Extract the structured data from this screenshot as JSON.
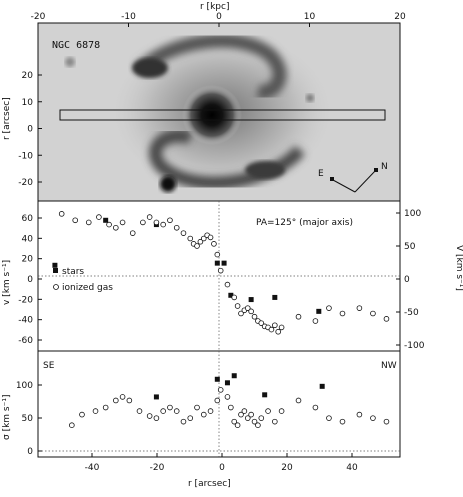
{
  "figure": {
    "galaxy_name": "NGC 6878",
    "top_axis_label": "r [kpc]",
    "top_ticks": [
      "-20",
      "-10",
      "0",
      "10",
      "20"
    ],
    "compass": {
      "east": "E",
      "north": "N"
    },
    "image_ylabel": "r [arcsec]",
    "image_yticks": [
      "20",
      "10",
      "0",
      "-10",
      "-20"
    ],
    "pa_label": "PA=125° (major axis)",
    "vel_ylabel": "v [km s⁻¹]",
    "vel_yticks": [
      "60",
      "40",
      "20",
      "0",
      "-20",
      "-40",
      "-60"
    ],
    "vel_right_label": "V [km s⁻¹]",
    "vel_right_ticks": [
      "100",
      "50",
      "0",
      "-50",
      "-100"
    ],
    "legend": {
      "stars": "stars",
      "gas": "ionized gas"
    },
    "sig_ylabel": "σ [km s⁻¹]",
    "sig_yticks": [
      "100",
      "50",
      "0"
    ],
    "se_label": "SE",
    "nw_label": "NW",
    "bottom_xlabel": "r [arcsec]",
    "bottom_ticks": [
      "-40",
      "-20",
      "0",
      "20",
      "40"
    ]
  },
  "chart_data": [
    {
      "type": "scatter",
      "panel": "velocity",
      "xlabel": "r [arcsec]",
      "ylabel": "v [km s⁻¹]",
      "xlim": [
        -55,
        52
      ],
      "ylim": [
        -70,
        70
      ],
      "series": [
        {
          "name": "stars",
          "marker": "filled",
          "points": [
            [
              -50,
              10
            ],
            [
              -35,
              52
            ],
            [
              -20,
              48
            ],
            [
              -2,
              12
            ],
            [
              0,
              12
            ],
            [
              2,
              -18
            ],
            [
              8,
              -22
            ],
            [
              15,
              -20
            ],
            [
              28,
              -33
            ]
          ]
        },
        {
          "name": "ionized gas",
          "marker": "open",
          "points": [
            [
              -48,
              58
            ],
            [
              -44,
              52
            ],
            [
              -40,
              50
            ],
            [
              -37,
              55
            ],
            [
              -34,
              48
            ],
            [
              -32,
              45
            ],
            [
              -30,
              50
            ],
            [
              -27,
              40
            ],
            [
              -24,
              50
            ],
            [
              -22,
              55
            ],
            [
              -20,
              50
            ],
            [
              -18,
              48
            ],
            [
              -16,
              52
            ],
            [
              -14,
              45
            ],
            [
              -12,
              40
            ],
            [
              -10,
              35
            ],
            [
              -9,
              30
            ],
            [
              -8,
              28
            ],
            [
              -7,
              32
            ],
            [
              -6,
              35
            ],
            [
              -5,
              38
            ],
            [
              -4,
              36
            ],
            [
              -3,
              30
            ],
            [
              -2,
              20
            ],
            [
              -1,
              5
            ],
            [
              1,
              -8
            ],
            [
              3,
              -20
            ],
            [
              4,
              -28
            ],
            [
              5,
              -35
            ],
            [
              6,
              -32
            ],
            [
              7,
              -30
            ],
            [
              8,
              -33
            ],
            [
              9,
              -38
            ],
            [
              10,
              -42
            ],
            [
              11,
              -44
            ],
            [
              12,
              -47
            ],
            [
              13,
              -48
            ],
            [
              14,
              -50
            ],
            [
              15,
              -46
            ],
            [
              16,
              -52
            ],
            [
              17,
              -48
            ],
            [
              22,
              -38
            ],
            [
              27,
              -42
            ],
            [
              31,
              -30
            ],
            [
              35,
              -35
            ],
            [
              40,
              -30
            ],
            [
              44,
              -35
            ],
            [
              48,
              -40
            ]
          ]
        }
      ]
    },
    {
      "type": "scatter",
      "panel": "dispersion",
      "xlabel": "r [arcsec]",
      "ylabel": "σ [km s⁻¹]",
      "xlim": [
        -55,
        52
      ],
      "ylim": [
        -10,
        140
      ],
      "series": [
        {
          "name": "stars",
          "marker": "filled",
          "points": [
            [
              -20,
              75
            ],
            [
              -2,
              100
            ],
            [
              1,
              95
            ],
            [
              3,
              105
            ],
            [
              12,
              78
            ],
            [
              29,
              90
            ]
          ]
        },
        {
          "name": "ionized gas",
          "marker": "open",
          "points": [
            [
              -45,
              35
            ],
            [
              -42,
              50
            ],
            [
              -38,
              55
            ],
            [
              -35,
              60
            ],
            [
              -32,
              70
            ],
            [
              -30,
              75
            ],
            [
              -28,
              70
            ],
            [
              -25,
              55
            ],
            [
              -22,
              48
            ],
            [
              -20,
              45
            ],
            [
              -18,
              55
            ],
            [
              -16,
              60
            ],
            [
              -14,
              55
            ],
            [
              -12,
              40
            ],
            [
              -10,
              45
            ],
            [
              -8,
              60
            ],
            [
              -6,
              50
            ],
            [
              -4,
              55
            ],
            [
              -2,
              70
            ],
            [
              -1,
              85
            ],
            [
              1,
              75
            ],
            [
              2,
              60
            ],
            [
              3,
              40
            ],
            [
              4,
              35
            ],
            [
              5,
              50
            ],
            [
              6,
              55
            ],
            [
              7,
              45
            ],
            [
              8,
              50
            ],
            [
              9,
              40
            ],
            [
              10,
              35
            ],
            [
              11,
              45
            ],
            [
              13,
              55
            ],
            [
              15,
              40
            ],
            [
              17,
              55
            ],
            [
              22,
              70
            ],
            [
              27,
              60
            ],
            [
              31,
              45
            ],
            [
              35,
              40
            ],
            [
              40,
              50
            ],
            [
              44,
              45
            ],
            [
              48,
              40
            ]
          ]
        }
      ]
    }
  ]
}
